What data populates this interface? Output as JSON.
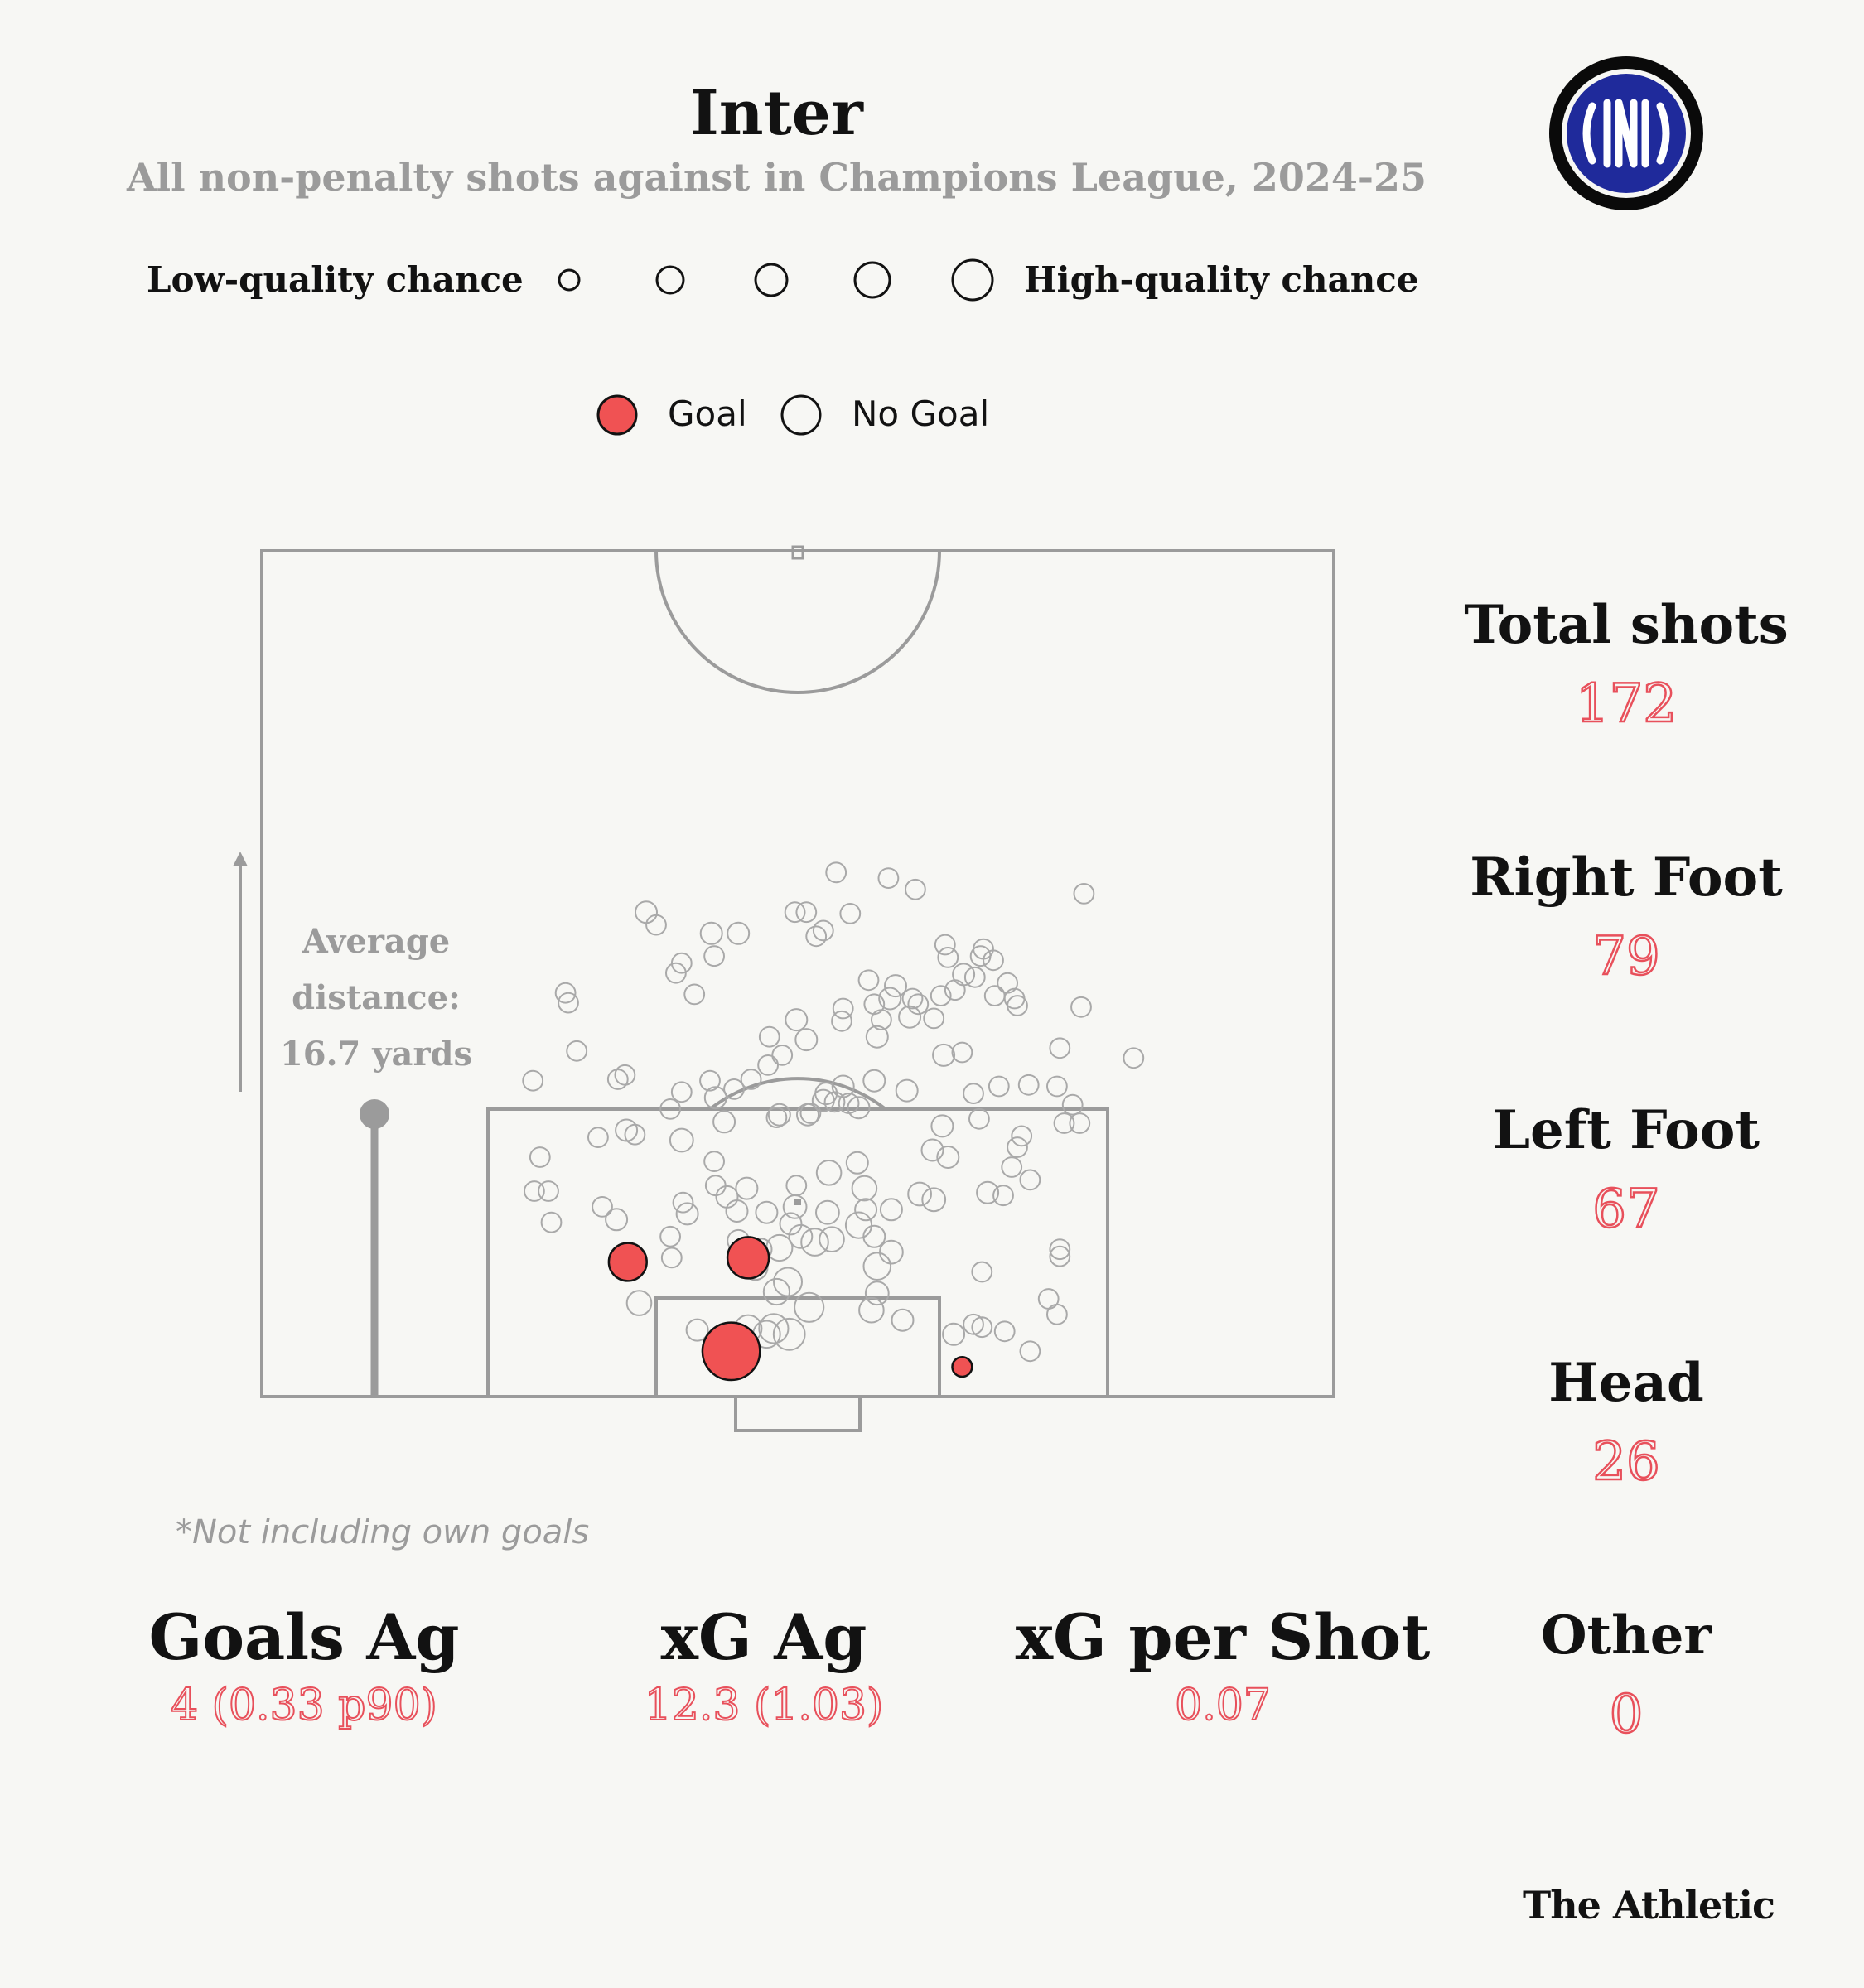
{
  "title": "Inter",
  "subtitle": "All non-penalty shots against in Champions League, 2024-25",
  "size_legend": {
    "low_label": "Low-quality chance",
    "high_label": "High-quality chance",
    "levels": 5
  },
  "outcome_legend": {
    "goal_label": "Goal",
    "no_goal_label": "No Goal",
    "goal_color": "#f05253",
    "no_goal_color": "#f7f7f4"
  },
  "average_distance": {
    "line1": "Average",
    "line2": "distance:",
    "line3": "16.7 yards",
    "yards": 16.7
  },
  "stats_side": [
    {
      "label": "Total shots",
      "value": "172"
    },
    {
      "label": "Right Foot",
      "value": "79"
    },
    {
      "label": "Left Foot",
      "value": "67"
    },
    {
      "label": "Head",
      "value": "26"
    },
    {
      "label": "Other",
      "value": "0"
    }
  ],
  "stats_bottom": [
    {
      "label": "Goals Ag",
      "value": "4 (0.33 p90)"
    },
    {
      "label": "xG Ag",
      "value": "12.3 (1.03)"
    },
    {
      "label": "xG per Shot",
      "value": "0.07"
    }
  ],
  "footnote": "*Not including own goals",
  "brand": "The Athletic",
  "logo": {
    "name": "inter-crest",
    "text": "IM",
    "colors": [
      "#0a0a0a",
      "#1f2a9b",
      "#ffffff"
    ]
  },
  "chart_data": {
    "type": "scatter",
    "title": "Inter",
    "subtitle": "All non-penalty shots against in Champions League, 2024-25",
    "x_unit": "yards from goal centre (negative = left of goal)",
    "y_unit": "yards from goal line",
    "xlim": [
      -40,
      40
    ],
    "ylim": [
      0,
      63
    ],
    "total_shots": 172,
    "goals": [
      {
        "x": -12.0,
        "y": 9.5,
        "xg": 0.2,
        "outcome": "goal"
      },
      {
        "x": -3.5,
        "y": 9.8,
        "xg": 0.25,
        "outcome": "goal"
      },
      {
        "x": -4.7,
        "y": 3.2,
        "xg": 0.55,
        "outcome": "goal"
      },
      {
        "x": 11.6,
        "y": 2.1,
        "xg": 0.03,
        "outcome": "goal"
      }
    ],
    "shots": [
      {
        "x": 2.7,
        "y": 37,
        "xg": 0.03
      },
      {
        "x": 6.4,
        "y": 36.6,
        "xg": 0.03
      },
      {
        "x": 8.3,
        "y": 35.8,
        "xg": 0.03
      },
      {
        "x": 20.2,
        "y": 35.5,
        "xg": 0.03
      },
      {
        "x": -10.7,
        "y": 34.2,
        "xg": 0.04
      },
      {
        "x": -0.2,
        "y": 34.2,
        "xg": 0.03
      },
      {
        "x": 0.6,
        "y": 34.2,
        "xg": 0.03
      },
      {
        "x": 3.7,
        "y": 34.1,
        "xg": 0.03
      },
      {
        "x": -10,
        "y": 33.3,
        "xg": 0.03
      },
      {
        "x": -6.1,
        "y": 32.7,
        "xg": 0.04
      },
      {
        "x": -4.2,
        "y": 32.7,
        "xg": 0.04
      },
      {
        "x": 1.8,
        "y": 32.9,
        "xg": 0.03
      },
      {
        "x": 1.3,
        "y": 32.5,
        "xg": 0.03
      },
      {
        "x": 10.4,
        "y": 31.9,
        "xg": 0.03
      },
      {
        "x": 13.1,
        "y": 31.6,
        "xg": 0.03
      },
      {
        "x": 12.9,
        "y": 31.1,
        "xg": 0.03
      },
      {
        "x": 10.6,
        "y": 31,
        "xg": 0.03
      },
      {
        "x": 13.8,
        "y": 30.8,
        "xg": 0.03
      },
      {
        "x": -5.9,
        "y": 31.1,
        "xg": 0.03
      },
      {
        "x": -8.2,
        "y": 30.6,
        "xg": 0.03
      },
      {
        "x": 11.7,
        "y": 29.8,
        "xg": 0.04
      },
      {
        "x": 12.5,
        "y": 29.6,
        "xg": 0.03
      },
      {
        "x": -8.6,
        "y": 29.9,
        "xg": 0.03
      },
      {
        "x": 5,
        "y": 29.4,
        "xg": 0.03
      },
      {
        "x": 6.9,
        "y": 29,
        "xg": 0.04
      },
      {
        "x": 14.8,
        "y": 29.2,
        "xg": 0.03
      },
      {
        "x": 11.1,
        "y": 28.7,
        "xg": 0.03
      },
      {
        "x": -16.4,
        "y": 28.5,
        "xg": 0.03
      },
      {
        "x": 6.5,
        "y": 28.1,
        "xg": 0.04
      },
      {
        "x": 13.9,
        "y": 28.3,
        "xg": 0.03
      },
      {
        "x": 15.3,
        "y": 28.1,
        "xg": 0.03
      },
      {
        "x": -7.3,
        "y": 28.4,
        "xg": 0.03
      },
      {
        "x": 15.5,
        "y": 27.6,
        "xg": 0.03
      },
      {
        "x": 8.1,
        "y": 28.1,
        "xg": 0.03
      },
      {
        "x": 8.5,
        "y": 27.7,
        "xg": 0.03
      },
      {
        "x": 10.1,
        "y": 28.3,
        "xg": 0.03
      },
      {
        "x": -16.2,
        "y": 27.8,
        "xg": 0.03
      },
      {
        "x": 5.4,
        "y": 27.7,
        "xg": 0.03
      },
      {
        "x": 3.2,
        "y": 27.4,
        "xg": 0.03
      },
      {
        "x": 7.9,
        "y": 26.8,
        "xg": 0.04
      },
      {
        "x": 9.6,
        "y": 26.7,
        "xg": 0.03
      },
      {
        "x": 20,
        "y": 27.5,
        "xg": 0.03
      },
      {
        "x": -0.1,
        "y": 26.6,
        "xg": 0.04
      },
      {
        "x": 3.1,
        "y": 26.5,
        "xg": 0.03
      },
      {
        "x": 5.9,
        "y": 26.6,
        "xg": 0.03
      },
      {
        "x": -2,
        "y": 25.4,
        "xg": 0.03
      },
      {
        "x": 0.6,
        "y": 25.2,
        "xg": 0.04
      },
      {
        "x": 5.6,
        "y": 25.4,
        "xg": 0.04
      },
      {
        "x": -1.1,
        "y": 24.1,
        "xg": 0.03
      },
      {
        "x": 10.3,
        "y": 24.1,
        "xg": 0.04
      },
      {
        "x": 11.6,
        "y": 24.3,
        "xg": 0.03
      },
      {
        "x": 18.5,
        "y": 24.6,
        "xg": 0.03
      },
      {
        "x": -15.6,
        "y": 24.4,
        "xg": 0.03
      },
      {
        "x": -2.1,
        "y": 23.4,
        "xg": 0.03
      },
      {
        "x": -6.2,
        "y": 22.3,
        "xg": 0.03
      },
      {
        "x": -3.3,
        "y": 22.4,
        "xg": 0.03
      },
      {
        "x": 23.7,
        "y": 23.9,
        "xg": 0.03
      },
      {
        "x": -12.2,
        "y": 22.7,
        "xg": 0.03
      },
      {
        "x": -12.7,
        "y": 22.4,
        "xg": 0.03
      },
      {
        "x": -18.7,
        "y": 22.3,
        "xg": 0.03
      },
      {
        "x": 5.4,
        "y": 22.3,
        "xg": 0.04
      },
      {
        "x": -4.5,
        "y": 21.7,
        "xg": 0.03
      },
      {
        "x": 3.2,
        "y": 21.9,
        "xg": 0.04
      },
      {
        "x": -8.2,
        "y": 21.5,
        "xg": 0.03
      },
      {
        "x": 16.3,
        "y": 22,
        "xg": 0.03
      },
      {
        "x": 14.2,
        "y": 21.9,
        "xg": 0.03
      },
      {
        "x": 18.3,
        "y": 21.9,
        "xg": 0.03
      },
      {
        "x": 2,
        "y": 21.4,
        "xg": 0.04
      },
      {
        "x": 7.7,
        "y": 21.6,
        "xg": 0.04
      },
      {
        "x": 12.4,
        "y": 21.4,
        "xg": 0.03
      },
      {
        "x": -5.8,
        "y": 21.1,
        "xg": 0.04
      },
      {
        "x": 1.8,
        "y": 20.9,
        "xg": 0.04
      },
      {
        "x": 3.6,
        "y": 20.7,
        "xg": 0.03
      },
      {
        "x": 2.6,
        "y": 20.8,
        "xg": 0.03
      },
      {
        "x": -9,
        "y": 20.3,
        "xg": 0.03
      },
      {
        "x": 4.3,
        "y": 20.4,
        "xg": 0.04
      },
      {
        "x": 19.4,
        "y": 20.6,
        "xg": 0.03
      },
      {
        "x": -1.3,
        "y": 19.9,
        "xg": 0.04
      },
      {
        "x": 0.7,
        "y": 19.9,
        "xg": 0.04
      },
      {
        "x": -5.2,
        "y": 19.4,
        "xg": 0.04
      },
      {
        "x": -1.5,
        "y": 19.7,
        "xg": 0.03
      },
      {
        "x": 12.8,
        "y": 19.6,
        "xg": 0.03
      },
      {
        "x": 18.8,
        "y": 19.3,
        "xg": 0.03
      },
      {
        "x": 19.9,
        "y": 19.3,
        "xg": 0.03
      },
      {
        "x": 0.9,
        "y": 20,
        "xg": 0.03
      },
      {
        "x": -12.1,
        "y": 18.8,
        "xg": 0.04
      },
      {
        "x": -8.2,
        "y": 18.1,
        "xg": 0.05
      },
      {
        "x": 10.2,
        "y": 19.1,
        "xg": 0.04
      },
      {
        "x": -11.5,
        "y": 18.5,
        "xg": 0.03
      },
      {
        "x": -14.1,
        "y": 18.3,
        "xg": 0.03
      },
      {
        "x": 15.8,
        "y": 18.4,
        "xg": 0.03
      },
      {
        "x": -18.2,
        "y": 16.9,
        "xg": 0.03
      },
      {
        "x": 9.5,
        "y": 17.4,
        "xg": 0.04
      },
      {
        "x": 15.5,
        "y": 17.6,
        "xg": 0.03
      },
      {
        "x": 10.6,
        "y": 16.9,
        "xg": 0.04
      },
      {
        "x": -5.9,
        "y": 16.6,
        "xg": 0.03
      },
      {
        "x": 15.1,
        "y": 16.2,
        "xg": 0.03
      },
      {
        "x": 4.2,
        "y": 16.5,
        "xg": 0.04
      },
      {
        "x": 2.2,
        "y": 15.8,
        "xg": 0.06
      },
      {
        "x": 16.4,
        "y": 15.3,
        "xg": 0.03
      },
      {
        "x": -0.1,
        "y": 14.9,
        "xg": 0.03
      },
      {
        "x": -3.6,
        "y": 14.7,
        "xg": 0.04
      },
      {
        "x": 4.7,
        "y": 14.7,
        "xg": 0.06
      },
      {
        "x": -5.8,
        "y": 14.9,
        "xg": 0.03
      },
      {
        "x": 13.4,
        "y": 14.4,
        "xg": 0.04
      },
      {
        "x": -18.6,
        "y": 14.5,
        "xg": 0.03
      },
      {
        "x": -17.6,
        "y": 14.5,
        "xg": 0.03
      },
      {
        "x": -5,
        "y": 14.1,
        "xg": 0.04
      },
      {
        "x": 14.5,
        "y": 14.2,
        "xg": 0.03
      },
      {
        "x": 8.6,
        "y": 14.3,
        "xg": 0.05
      },
      {
        "x": -8.1,
        "y": 13.7,
        "xg": 0.03
      },
      {
        "x": -0.2,
        "y": 13.4,
        "xg": 0.05
      },
      {
        "x": 9.6,
        "y": 13.9,
        "xg": 0.05
      },
      {
        "x": -13.8,
        "y": 13.4,
        "xg": 0.03
      },
      {
        "x": 2.1,
        "y": 13,
        "xg": 0.05
      },
      {
        "x": -2.2,
        "y": 13,
        "xg": 0.04
      },
      {
        "x": -4.3,
        "y": 13.1,
        "xg": 0.04
      },
      {
        "x": 4.8,
        "y": 13.2,
        "xg": 0.04
      },
      {
        "x": 6.6,
        "y": 13.2,
        "xg": 0.04
      },
      {
        "x": -7.8,
        "y": 12.9,
        "xg": 0.04
      },
      {
        "x": -12.8,
        "y": 12.5,
        "xg": 0.04
      },
      {
        "x": -17.4,
        "y": 12.3,
        "xg": 0.03
      },
      {
        "x": 4.3,
        "y": 12.1,
        "xg": 0.07
      },
      {
        "x": -0.5,
        "y": 12.2,
        "xg": 0.04
      },
      {
        "x": 0.2,
        "y": 11.3,
        "xg": 0.05
      },
      {
        "x": -9,
        "y": 11.3,
        "xg": 0.03
      },
      {
        "x": 1.2,
        "y": 10.9,
        "xg": 0.08
      },
      {
        "x": 2.4,
        "y": 11.1,
        "xg": 0.06
      },
      {
        "x": 5.4,
        "y": 11.3,
        "xg": 0.04
      },
      {
        "x": -4.2,
        "y": 11,
        "xg": 0.04
      },
      {
        "x": -1.3,
        "y": 10.5,
        "xg": 0.07
      },
      {
        "x": -2.6,
        "y": 10.4,
        "xg": 0.04
      },
      {
        "x": 6.6,
        "y": 10.2,
        "xg": 0.05
      },
      {
        "x": 18.5,
        "y": 10.4,
        "xg": 0.03
      },
      {
        "x": 18.5,
        "y": 9.9,
        "xg": 0.03
      },
      {
        "x": -8.9,
        "y": 9.8,
        "xg": 0.03
      },
      {
        "x": -3,
        "y": 9.1,
        "xg": 0.06
      },
      {
        "x": 5.6,
        "y": 9.2,
        "xg": 0.08
      },
      {
        "x": 13,
        "y": 8.8,
        "xg": 0.03
      },
      {
        "x": -0.7,
        "y": 8.1,
        "xg": 0.09
      },
      {
        "x": 5.6,
        "y": 7.3,
        "xg": 0.05
      },
      {
        "x": -1.5,
        "y": 7.4,
        "xg": 0.07
      },
      {
        "x": 17.7,
        "y": 6.9,
        "xg": 0.03
      },
      {
        "x": -11.2,
        "y": 6.6,
        "xg": 0.06
      },
      {
        "x": 0.8,
        "y": 6.3,
        "xg": 0.1
      },
      {
        "x": 5.2,
        "y": 6.1,
        "xg": 0.06
      },
      {
        "x": 18.3,
        "y": 5.8,
        "xg": 0.03
      },
      {
        "x": 7.4,
        "y": 5.4,
        "xg": 0.04
      },
      {
        "x": 12.4,
        "y": 5.1,
        "xg": 0.03
      },
      {
        "x": 13,
        "y": 4.9,
        "xg": 0.03
      },
      {
        "x": -7.1,
        "y": 4.7,
        "xg": 0.04
      },
      {
        "x": -3.5,
        "y": 4.8,
        "xg": 0.08
      },
      {
        "x": -2.2,
        "y": 4.4,
        "xg": 0.08
      },
      {
        "x": 11,
        "y": 4.4,
        "xg": 0.04
      },
      {
        "x": -0.6,
        "y": 4.4,
        "xg": 0.12
      },
      {
        "x": -1.7,
        "y": 4.8,
        "xg": 0.1
      },
      {
        "x": 14.6,
        "y": 4.6,
        "xg": 0.03
      },
      {
        "x": 16.4,
        "y": 3.2,
        "xg": 0.03
      }
    ]
  }
}
